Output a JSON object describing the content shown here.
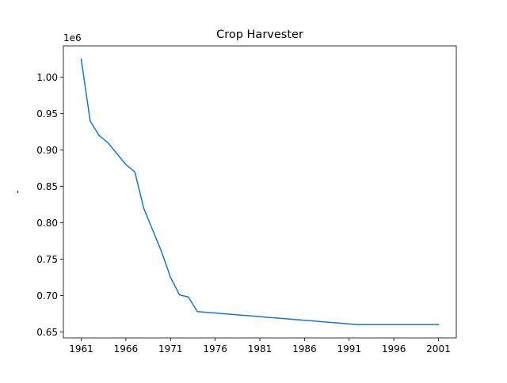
{
  "chart_data": {
    "type": "line",
    "title": "Crop Harvester",
    "xlabel": "",
    "ylabel": "-",
    "y_offset_label": "1e6",
    "x": [
      1961,
      1962,
      1963,
      1964,
      1965,
      1966,
      1967,
      1968,
      1969,
      1970,
      1971,
      1972,
      1973,
      1974,
      1975,
      1976,
      1977,
      1978,
      1979,
      1980,
      1981,
      1982,
      1983,
      1984,
      1985,
      1986,
      1987,
      1988,
      1989,
      1990,
      1991,
      1992,
      1993,
      1994,
      1995,
      1996,
      1997,
      1998,
      1999,
      2000,
      2001
    ],
    "series": [
      {
        "name": "",
        "color": "#1f77b4",
        "values": [
          1025000,
          940000,
          920000,
          910000,
          895000,
          880000,
          870000,
          820000,
          790000,
          760000,
          725000,
          701000,
          698000,
          678000,
          677000,
          676000,
          675000,
          674000,
          673000,
          672000,
          671000,
          670000,
          669000,
          668000,
          667000,
          666000,
          665000,
          664000,
          663000,
          662000,
          661000,
          660000,
          660000,
          660000,
          660000,
          660000,
          660000,
          660000,
          660000,
          660000,
          660000
        ]
      }
    ],
    "xlim": [
      1959.0,
      2003.0
    ],
    "ylim": [
      0.6418,
      1.0432
    ],
    "x_ticks": [
      1961,
      1966,
      1971,
      1976,
      1981,
      1986,
      1991,
      1996,
      2001
    ],
    "x_tick_labels": [
      "1961",
      "1966",
      "1971",
      "1976",
      "1981",
      "1986",
      "1991",
      "1996",
      "2001"
    ],
    "y_ticks": [
      0.65,
      0.7,
      0.75,
      0.8,
      0.85,
      0.9,
      0.95,
      1.0
    ],
    "y_tick_labels": [
      "0.65",
      "0.70",
      "0.75",
      "0.80",
      "0.85",
      "0.90",
      "0.95",
      "1.00"
    ],
    "grid": false,
    "legend": "none"
  }
}
